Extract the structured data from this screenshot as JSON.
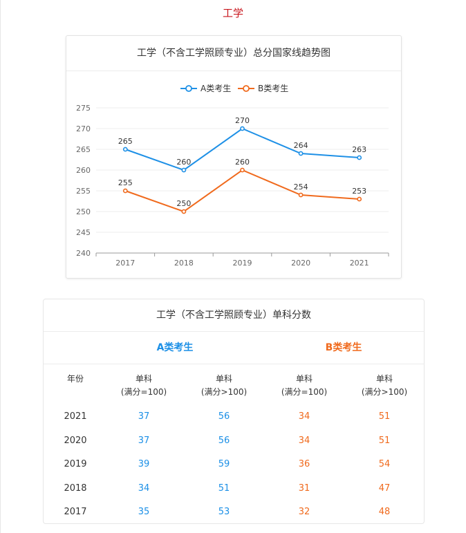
{
  "page_title": "工学",
  "chart_data": {
    "type": "line",
    "title": "工学（不含工学照顾专业）总分国家线趋势图",
    "categories": [
      "2017",
      "2018",
      "2019",
      "2020",
      "2021"
    ],
    "series": [
      {
        "name": "A类考生",
        "color": "#1e90e6",
        "values": [
          265,
          260,
          270,
          264,
          263
        ]
      },
      {
        "name": "B类考生",
        "color": "#f06a1d",
        "values": [
          255,
          250,
          260,
          254,
          253
        ]
      }
    ],
    "ylim": [
      240,
      275
    ],
    "yticks": [
      240,
      245,
      250,
      255,
      260,
      265,
      270,
      275
    ],
    "legend": "top-center",
    "grid": true
  },
  "table": {
    "title": "工学（不含工学照顾专业）单科分数",
    "group_a": "A类考生",
    "group_b": "B类考生",
    "columns": [
      {
        "line1": "年份",
        "line2": ""
      },
      {
        "line1": "单科",
        "line2": "(满分=100)"
      },
      {
        "line1": "单科",
        "line2": "(满分>100)"
      },
      {
        "line1": "单科",
        "line2": "(满分=100)"
      },
      {
        "line1": "单科",
        "line2": "(满分>100)"
      }
    ],
    "rows": [
      {
        "year": "2021",
        "a1": "37",
        "a2": "56",
        "b1": "34",
        "b2": "51"
      },
      {
        "year": "2020",
        "a1": "37",
        "a2": "56",
        "b1": "34",
        "b2": "51"
      },
      {
        "year": "2019",
        "a1": "39",
        "a2": "59",
        "b1": "36",
        "b2": "54"
      },
      {
        "year": "2018",
        "a1": "34",
        "a2": "51",
        "b1": "31",
        "b2": "47"
      },
      {
        "year": "2017",
        "a1": "35",
        "a2": "53",
        "b1": "32",
        "b2": "48"
      }
    ]
  }
}
